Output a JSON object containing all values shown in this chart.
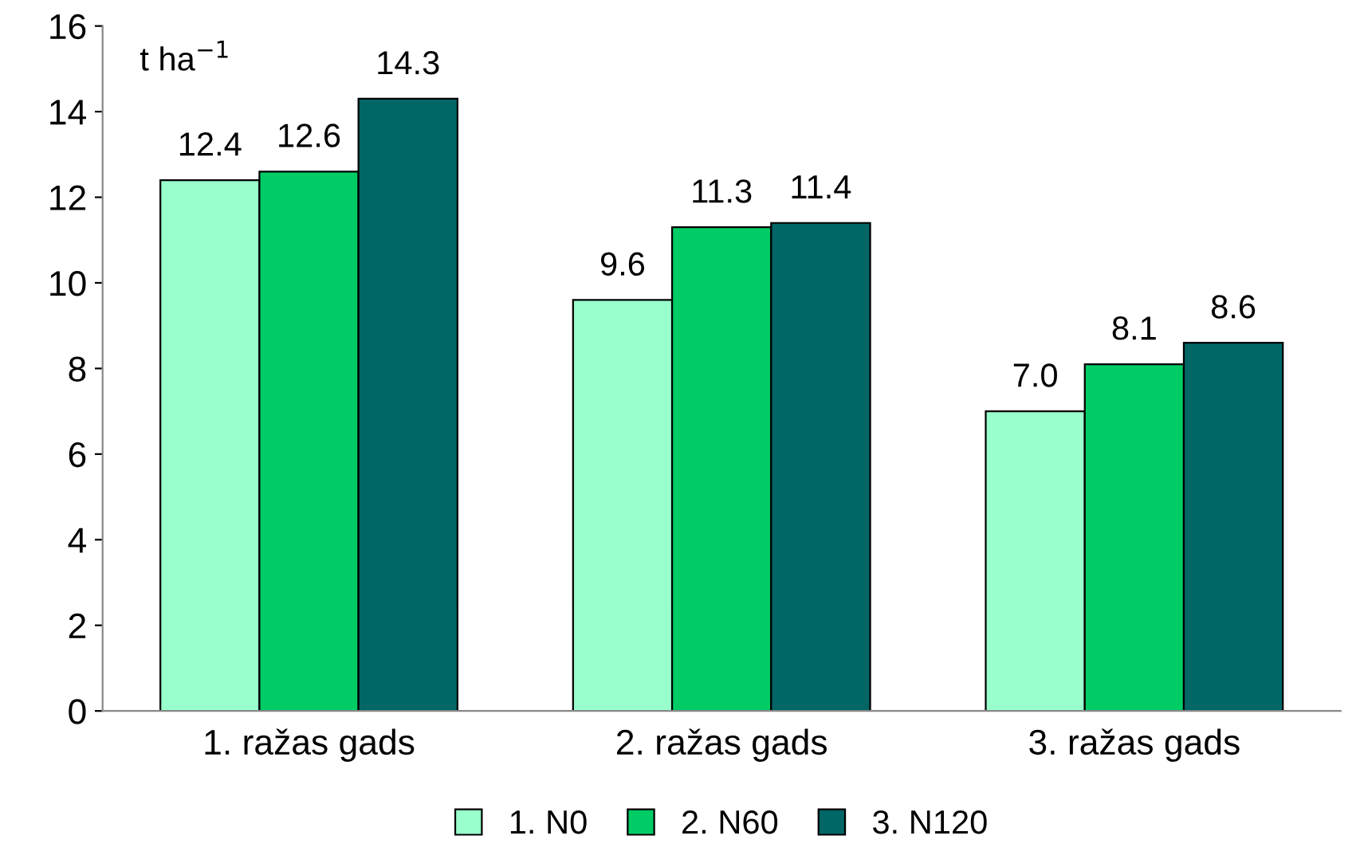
{
  "chart_data": {
    "type": "bar",
    "ylabel": "t ha$^{−1}$",
    "categories": [
      "1. ražas gads",
      "2. ražas gads",
      "3. ražas gads"
    ],
    "series": [
      {
        "name": "1. N0",
        "color": "#99ffcc",
        "values": [
          12.4,
          9.6,
          7.0
        ],
        "value_labels": [
          "12.4",
          "9.6",
          "7.0"
        ]
      },
      {
        "name": "2. N60",
        "color": "#00cc66",
        "values": [
          12.6,
          11.3,
          8.1
        ]
      },
      {
        "name": "3. N120",
        "color": "#006666",
        "values": [
          14.3,
          11.4,
          8.6
        ]
      }
    ],
    "ylim": [
      0,
      16
    ],
    "yticks": [
      0,
      2,
      4,
      6,
      8,
      10,
      12,
      14,
      16
    ],
    "grid": false,
    "legend": "bottom",
    "data_labels": true
  }
}
